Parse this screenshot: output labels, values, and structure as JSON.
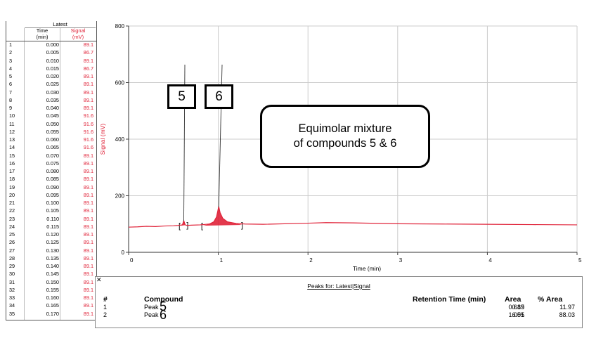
{
  "table": {
    "group_header": "Latest",
    "col_time": "Time\n(min)",
    "col_time_l1": "Time",
    "col_time_l2": "(min)",
    "col_signal_l1": "Signal",
    "col_signal_l2": "(mV)",
    "rows": [
      {
        "i": "1",
        "t": "0.000",
        "s": "89.1"
      },
      {
        "i": "2",
        "t": "0.005",
        "s": "86.7"
      },
      {
        "i": "3",
        "t": "0.010",
        "s": "89.1"
      },
      {
        "i": "4",
        "t": "0.015",
        "s": "86.7"
      },
      {
        "i": "5",
        "t": "0.020",
        "s": "89.1"
      },
      {
        "i": "6",
        "t": "0.025",
        "s": "89.1"
      },
      {
        "i": "7",
        "t": "0.030",
        "s": "89.1"
      },
      {
        "i": "8",
        "t": "0.035",
        "s": "89.1"
      },
      {
        "i": "9",
        "t": "0.040",
        "s": "89.1"
      },
      {
        "i": "10",
        "t": "0.045",
        "s": "91.6"
      },
      {
        "i": "11",
        "t": "0.050",
        "s": "91.6"
      },
      {
        "i": "12",
        "t": "0.055",
        "s": "91.6"
      },
      {
        "i": "13",
        "t": "0.060",
        "s": "91.6"
      },
      {
        "i": "14",
        "t": "0.065",
        "s": "91.6"
      },
      {
        "i": "15",
        "t": "0.070",
        "s": "89.1"
      },
      {
        "i": "16",
        "t": "0.075",
        "s": "89.1"
      },
      {
        "i": "17",
        "t": "0.080",
        "s": "89.1"
      },
      {
        "i": "18",
        "t": "0.085",
        "s": "89.1"
      },
      {
        "i": "19",
        "t": "0.090",
        "s": "89.1"
      },
      {
        "i": "20",
        "t": "0.095",
        "s": "89.1"
      },
      {
        "i": "21",
        "t": "0.100",
        "s": "89.1"
      },
      {
        "i": "22",
        "t": "0.105",
        "s": "89.1"
      },
      {
        "i": "23",
        "t": "0.110",
        "s": "89.1"
      },
      {
        "i": "24",
        "t": "0.115",
        "s": "89.1"
      },
      {
        "i": "25",
        "t": "0.120",
        "s": "89.1"
      },
      {
        "i": "26",
        "t": "0.125",
        "s": "89.1"
      },
      {
        "i": "27",
        "t": "0.130",
        "s": "89.1"
      },
      {
        "i": "28",
        "t": "0.135",
        "s": "89.1"
      },
      {
        "i": "29",
        "t": "0.140",
        "s": "89.1"
      },
      {
        "i": "30",
        "t": "0.145",
        "s": "89.1"
      },
      {
        "i": "31",
        "t": "0.150",
        "s": "89.1"
      },
      {
        "i": "32",
        "t": "0.155",
        "s": "89.1"
      },
      {
        "i": "33",
        "t": "0.160",
        "s": "89.1"
      },
      {
        "i": "34",
        "t": "0.165",
        "s": "89.1"
      },
      {
        "i": "35",
        "t": "0.170",
        "s": "89.1"
      }
    ]
  },
  "chart_data": {
    "type": "line",
    "xlabel": "Time (min)",
    "ylabel": "Signal (mV)",
    "xlim": [
      0,
      5
    ],
    "ylim": [
      0,
      800
    ],
    "x_ticks": [
      "0",
      "1",
      "2",
      "3",
      "4",
      "5"
    ],
    "y_ticks": [
      "0",
      "200",
      "400",
      "600",
      "800"
    ],
    "grid": true,
    "baseline_points": [
      [
        0.0,
        89
      ],
      [
        0.1,
        90
      ],
      [
        0.2,
        92
      ],
      [
        0.3,
        91
      ],
      [
        0.4,
        93
      ],
      [
        0.5,
        94
      ],
      [
        0.55,
        95
      ],
      [
        0.6,
        97
      ],
      [
        0.615,
        112
      ],
      [
        0.63,
        97
      ],
      [
        0.65,
        95
      ],
      [
        0.7,
        96
      ],
      [
        0.8,
        97
      ],
      [
        0.9,
        100
      ],
      [
        0.95,
        108
      ],
      [
        0.98,
        125
      ],
      [
        1.005,
        162
      ],
      [
        1.02,
        140
      ],
      [
        1.05,
        120
      ],
      [
        1.1,
        108
      ],
      [
        1.2,
        102
      ],
      [
        1.3,
        100
      ],
      [
        1.5,
        99
      ],
      [
        2.0,
        103
      ],
      [
        2.2,
        105
      ],
      [
        2.5,
        104
      ],
      [
        3.0,
        101
      ],
      [
        3.5,
        100
      ],
      [
        4.0,
        99
      ],
      [
        4.5,
        98
      ],
      [
        5.0,
        97
      ]
    ],
    "peaks": [
      {
        "rt": 0.615,
        "start": 0.58,
        "end": 0.66
      },
      {
        "rt": 1.005,
        "start": 0.83,
        "end": 1.27
      }
    ],
    "line_color": "#e0243a"
  },
  "annotations": {
    "label_5": "5",
    "label_6": "6",
    "note_line1": "Equimolar mixture",
    "note_line2": "of compounds 5 & 6"
  },
  "peaks_table": {
    "title": "Peaks for: Latest|Signal",
    "col_num": "#",
    "col_compound": "Compound",
    "col_rt": "Retention Time (min)",
    "col_area": "Area",
    "col_pct": "% Area",
    "overlay_5": "5",
    "overlay_6": "6",
    "rows": [
      {
        "num": "1",
        "compound": "Peak",
        "rt": "0.615",
        "area": "0.89",
        "pct": "11.97"
      },
      {
        "num": "2",
        "compound": "Peak",
        "rt": "1.005",
        "area": "6.51",
        "pct": "88.03"
      }
    ]
  }
}
